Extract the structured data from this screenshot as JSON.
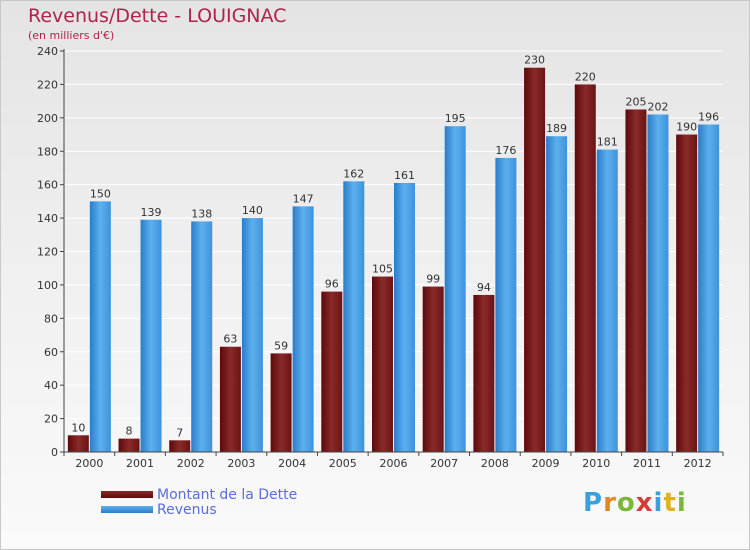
{
  "header": {
    "title": "Revenus/Dette - LOUIGNAC",
    "subtitle": "(en milliers d'€)"
  },
  "legend": {
    "debt_label": "Montant de la Dette",
    "revenue_label": "Revenus"
  },
  "logo": {
    "letters": [
      "P",
      "r",
      "o",
      "x",
      "i",
      "t",
      "i"
    ],
    "colors": [
      "#3aa0d8",
      "#e08a1e",
      "#7bb83a",
      "#d83a3a",
      "#3aa0d8",
      "#e0b01e",
      "#7bb83a"
    ]
  },
  "colors": {
    "debt": "#7a1a1a",
    "revenue": "#3d8fd8",
    "grid": "#ffffff",
    "axis": "#444444"
  },
  "chart_data": {
    "type": "bar",
    "title": "Revenus/Dette - LOUIGNAC",
    "subtitle": "(en milliers d'€)",
    "categories": [
      "2000",
      "2001",
      "2002",
      "2003",
      "2004",
      "2005",
      "2006",
      "2007",
      "2008",
      "2009",
      "2010",
      "2011",
      "2012"
    ],
    "series": [
      {
        "name": "Montant de la Dette",
        "values": [
          10,
          8,
          7,
          63,
          59,
          96,
          105,
          99,
          94,
          230,
          220,
          205,
          190
        ]
      },
      {
        "name": "Revenus",
        "values": [
          150,
          139,
          138,
          140,
          147,
          162,
          161,
          195,
          176,
          189,
          181,
          202,
          196
        ]
      }
    ],
    "ylim": [
      0,
      240
    ],
    "yticks": [
      "0",
      "20",
      "40",
      "60",
      "80",
      "100",
      "120",
      "140",
      "160",
      "180",
      "200",
      "220",
      "240"
    ],
    "grid": true,
    "legend_position": "bottom-left"
  }
}
